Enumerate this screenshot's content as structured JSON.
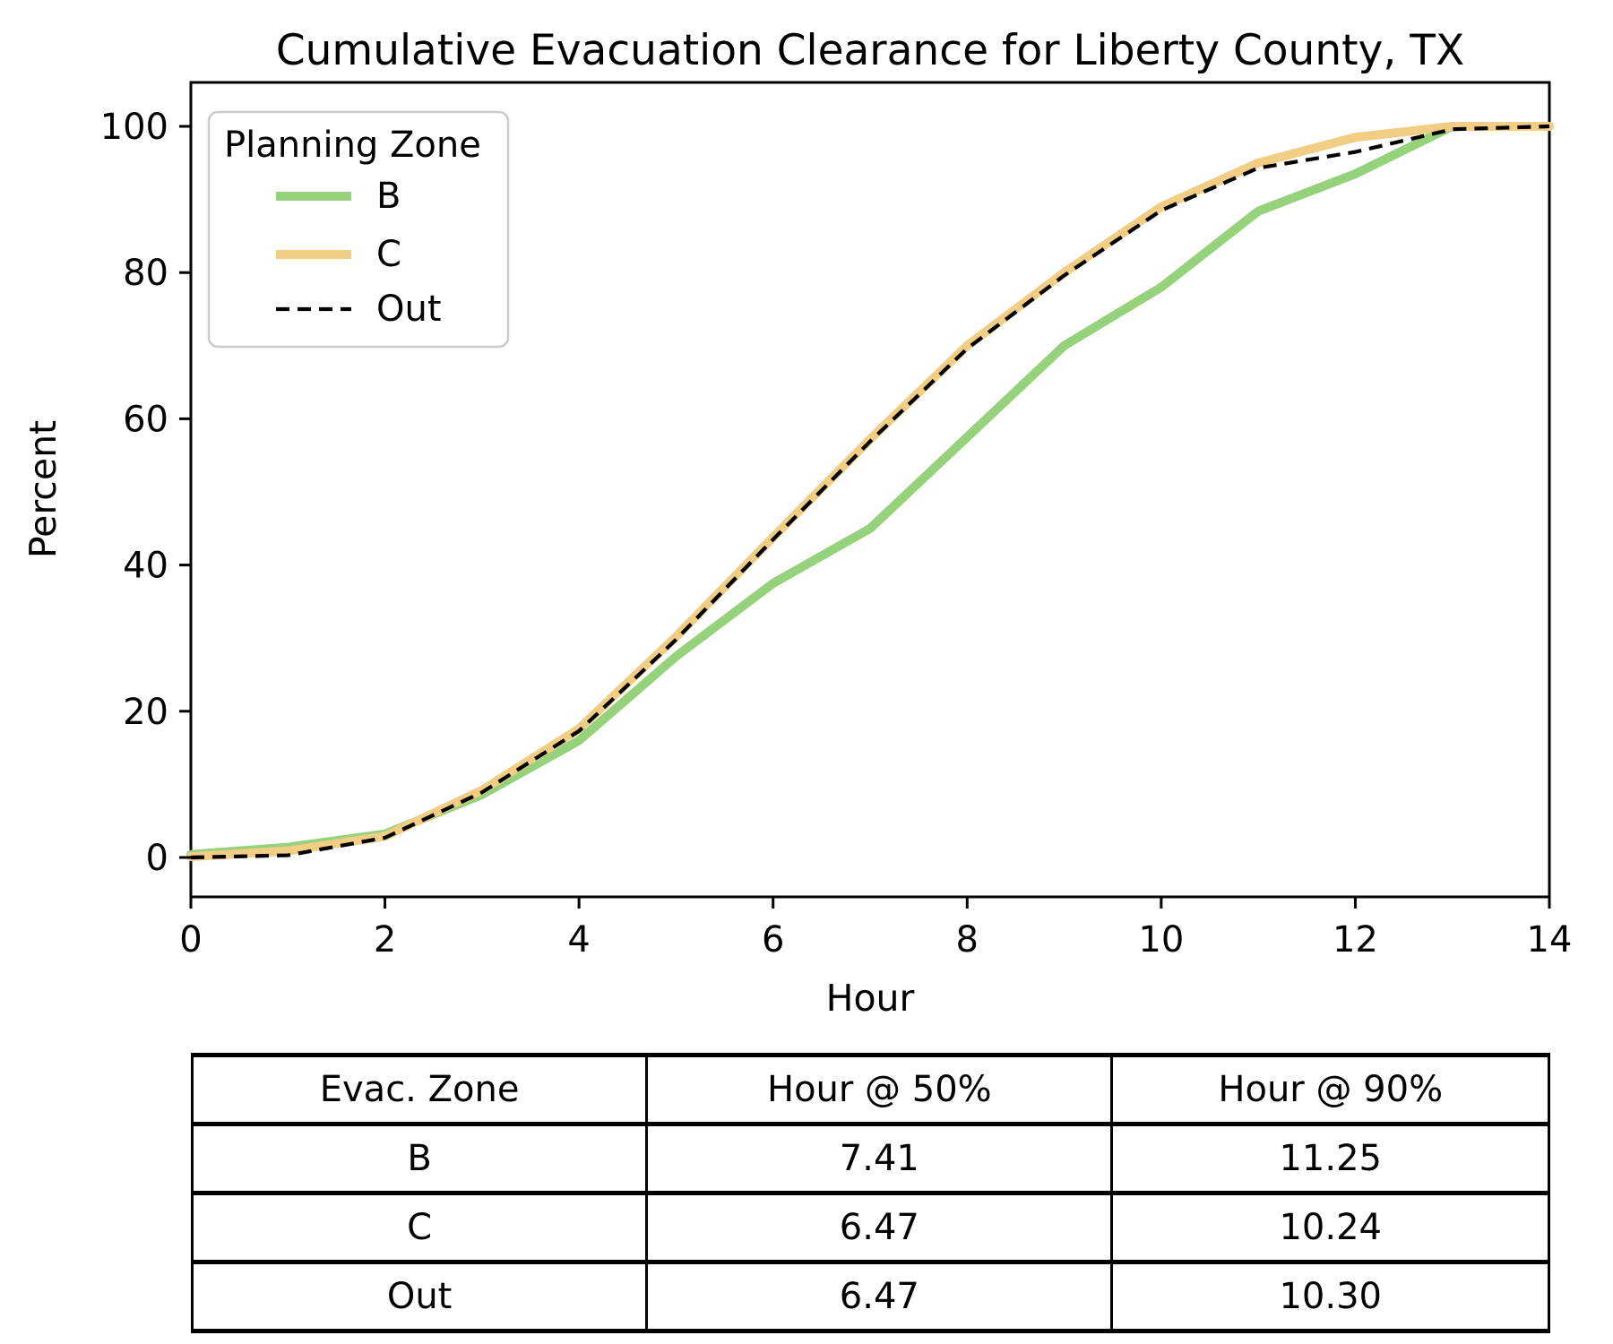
{
  "title": "Cumulative Evacuation Clearance for Liberty County, TX",
  "axes": {
    "xlabel": "Hour",
    "ylabel": "Percent",
    "x_ticks": [
      0,
      2,
      4,
      6,
      8,
      10,
      12,
      14
    ],
    "y_ticks": [
      0,
      20,
      40,
      60,
      80,
      100
    ],
    "xlim": [
      0,
      14
    ],
    "ylim": [
      0,
      100
    ],
    "grid": false
  },
  "legend": {
    "title": "Planning Zone",
    "position": "upper-left",
    "items": [
      {
        "label": "B",
        "color": "#96d27c",
        "dash": false
      },
      {
        "label": "C",
        "color": "#f2cd84",
        "dash": false
      },
      {
        "label": "Out",
        "color": "#000000",
        "dash": true
      }
    ]
  },
  "chart_data": {
    "type": "line",
    "title": "Cumulative Evacuation Clearance for Liberty County, TX",
    "xlabel": "Hour",
    "ylabel": "Percent",
    "xlim": [
      0,
      14
    ],
    "ylim": [
      0,
      100
    ],
    "legend_position": "upper-left",
    "x": [
      0,
      1,
      2,
      3,
      4,
      5,
      6,
      7,
      8,
      9,
      10,
      11,
      12,
      13,
      14
    ],
    "series": [
      {
        "name": "B",
        "color": "#96d27c",
        "width": 10,
        "dash": null,
        "values": [
          0.4,
          1.4,
          3.2,
          8.6,
          16.0,
          27.5,
          37.5,
          45.0,
          57.5,
          70.0,
          78.0,
          88.4,
          93.5,
          100,
          100
        ]
      },
      {
        "name": "C",
        "color": "#f2cd84",
        "width": 10,
        "dash": null,
        "values": [
          0.1,
          0.9,
          2.9,
          9.2,
          17.6,
          30.2,
          43.8,
          57.2,
          70.0,
          80.0,
          89.0,
          95.0,
          98.5,
          100,
          100
        ]
      },
      {
        "name": "Out",
        "color": "#000000",
        "width": 4.2,
        "dash": "15 9",
        "values": [
          0.0,
          0.3,
          2.7,
          8.9,
          17.3,
          29.8,
          43.5,
          56.9,
          69.6,
          79.6,
          88.5,
          94.3,
          96.5,
          99.6,
          100
        ]
      }
    ]
  },
  "table": {
    "headers": [
      "Evac. Zone",
      "Hour @ 50%",
      "Hour @ 90%"
    ],
    "rows": [
      {
        "zone": "B",
        "h50": "7.41",
        "h90": "11.25"
      },
      {
        "zone": "C",
        "h50": "6.47",
        "h90": "10.24"
      },
      {
        "zone": "Out",
        "h50": "6.47",
        "h90": "10.30"
      }
    ]
  }
}
